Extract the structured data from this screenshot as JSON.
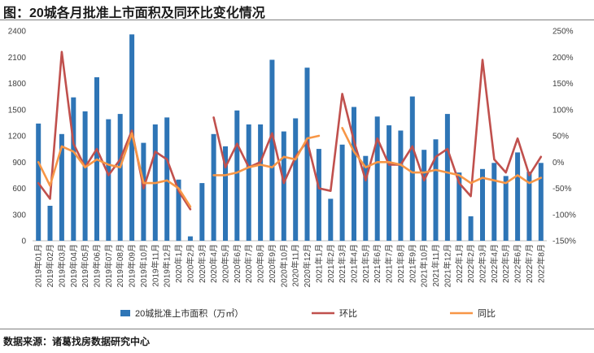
{
  "title": "图：20城各月批准上市面积及同环比变化情况",
  "source": "数据来源：诸葛找房数据研究中心",
  "chart_data": {
    "type": "bar",
    "categories": [
      "2019年01月",
      "2019年02月",
      "2019年03月",
      "2019年04月",
      "2019年05月",
      "2019年06月",
      "2019年07月",
      "2019年08月",
      "2019年09月",
      "2019年10月",
      "2019年11月",
      "2019年12月",
      "2020年1月",
      "2020年2月",
      "2020年3月",
      "2020年4月",
      "2020年5月",
      "2020年6月",
      "2020年7月",
      "2020年8月",
      "2020年9月",
      "2020年10月",
      "2020年11月",
      "2020年12月",
      "2021年1月",
      "2021年2月",
      "2021年3月",
      "2021年4月",
      "2021年5月",
      "2021年6月",
      "2021年7月",
      "2021年8月",
      "2021年9月",
      "2021年10月",
      "2021年11月",
      "2021年12月",
      "2022年1月",
      "2022年2月",
      "2022年3月",
      "2022年4月",
      "2022年5月",
      "2022年6月",
      "2022年7月",
      "2022年8月"
    ],
    "series": [
      {
        "name": "20城批准上市面积（万㎡）",
        "axis": "left",
        "type": "bar",
        "color": "#2e75b6",
        "values": [
          1340,
          400,
          1220,
          1640,
          1480,
          1870,
          1390,
          1450,
          2360,
          1120,
          1330,
          1410,
          700,
          50,
          660,
          1220,
          1080,
          1490,
          1330,
          1330,
          2070,
          1250,
          1400,
          1980,
          1050,
          480,
          1100,
          1530,
          970,
          1420,
          1320,
          1260,
          1650,
          1040,
          1160,
          1450,
          780,
          280,
          820,
          890,
          740,
          1010,
          790,
          890
        ]
      },
      {
        "name": "环比",
        "axis": "right",
        "type": "line",
        "color": "#c0504d",
        "values": [
          -40,
          -70,
          210,
          35,
          -10,
          25,
          -25,
          5,
          60,
          -50,
          20,
          5,
          -55,
          -90,
          null,
          85,
          -10,
          35,
          -10,
          0,
          55,
          -40,
          10,
          40,
          -50,
          -55,
          130,
          40,
          -35,
          45,
          -5,
          -5,
          30,
          -35,
          10,
          25,
          -40,
          -65,
          195,
          5,
          -20,
          45,
          -25,
          10
        ]
      },
      {
        "name": "同比",
        "axis": "right",
        "type": "line",
        "color": "#f79646",
        "values": [
          0,
          -45,
          30,
          20,
          -10,
          5,
          -5,
          -10,
          55,
          -40,
          -40,
          -35,
          -50,
          -85,
          null,
          -25,
          -25,
          -20,
          -10,
          -5,
          -10,
          10,
          5,
          45,
          50,
          null,
          65,
          20,
          -10,
          0,
          0,
          -5,
          -20,
          -20,
          -15,
          -20,
          -25,
          -40,
          -30,
          -35,
          -40,
          -25,
          -40,
          -30
        ]
      }
    ],
    "yAxisLeft": {
      "min": 0,
      "max": 2400,
      "ticks": [
        "0",
        "300",
        "600",
        "900",
        "1200",
        "1500",
        "1800",
        "2100",
        "2400"
      ]
    },
    "yAxisRight": {
      "min": -150,
      "max": 250,
      "ticks": [
        "-150%",
        "-100%",
        "-50%",
        "0%",
        "50%",
        "100%",
        "150%",
        "200%",
        "250%"
      ]
    },
    "grid": false,
    "legend": "bottom"
  }
}
